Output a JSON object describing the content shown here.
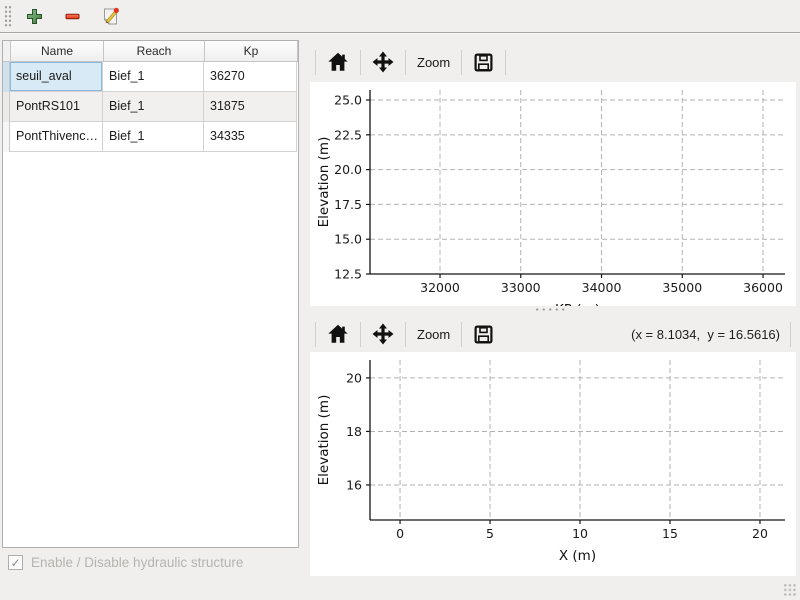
{
  "window": {
    "bg_color": "#f0efee",
    "figure_bg": "#ffffff"
  },
  "main_toolbar": {
    "buttons": [
      {
        "name": "add",
        "icon": "plus-icon",
        "color": "#4e9150"
      },
      {
        "name": "remove",
        "icon": "minus-icon",
        "color": "#ef4b26"
      },
      {
        "name": "edit",
        "icon": "edit-pencil-icon",
        "color": "#e9c53a"
      }
    ]
  },
  "structures_table": {
    "headers": [
      "Name",
      "Reach",
      "Kp"
    ],
    "rows": [
      {
        "name": "seuil_aval",
        "reach": "Bief_1",
        "kp": "36270",
        "selected": true
      },
      {
        "name": "PontRS101",
        "reach": "Bief_1",
        "kp": "31875",
        "selected": false
      },
      {
        "name": "PontThivenc…",
        "reach": "Bief_1",
        "kp": "34335",
        "selected": false
      }
    ],
    "selection_color": "#d9eaf7"
  },
  "enable_checkbox": {
    "label": "Enable / Disable hydraulic structure",
    "checked": true,
    "enabled": false,
    "checkmark_glyph": "✓"
  },
  "plots": {
    "top": {
      "zoom_label": "Zoom",
      "toolbar_icons": [
        "home-icon",
        "pan-icon",
        "zoom-text-button",
        "save-icon"
      ]
    },
    "bottom": {
      "zoom_label": "Zoom",
      "toolbar_icons": [
        "home-icon",
        "pan-icon",
        "zoom-text-button",
        "save-icon"
      ],
      "coordinates_readout": "(x = 8.1034,  y = 16.5616)"
    }
  },
  "chart_data": [
    {
      "type": "line",
      "title": "",
      "xlabel": "KP (m)",
      "ylabel": "Elevation (m)",
      "xlim": [
        31133,
        36272
      ],
      "ylim": [
        12.5,
        25.72
      ],
      "xticks": [
        32000,
        33000,
        34000,
        35000,
        36000
      ],
      "xtick_labels": [
        "32000",
        "33000",
        "34000",
        "35000",
        "36000"
      ],
      "yticks": [
        25.0,
        22.5,
        20.0,
        17.5,
        15.0,
        12.5
      ],
      "ytick_labels": [
        "25.0",
        "22.5",
        "20.0",
        "17.5",
        "15.0",
        "12.5"
      ],
      "grid": true,
      "grid_style": "dashed",
      "legend": "none",
      "series": [],
      "xlabel_clipped": true
    },
    {
      "type": "line",
      "title": "",
      "xlabel": "X (m)",
      "ylabel": "Elevation (m)",
      "xlim": [
        -1.67,
        21.39
      ],
      "ylim": [
        14.69,
        20.67
      ],
      "xticks": [
        0,
        5,
        10,
        15,
        20
      ],
      "xtick_labels": [
        "0",
        "5",
        "10",
        "15",
        "20"
      ],
      "yticks": [
        20,
        18,
        16
      ],
      "ytick_labels": [
        "20",
        "18",
        "16"
      ],
      "grid": true,
      "grid_style": "dashed",
      "legend": "none",
      "series": [],
      "xlabel_clipped": false
    }
  ]
}
